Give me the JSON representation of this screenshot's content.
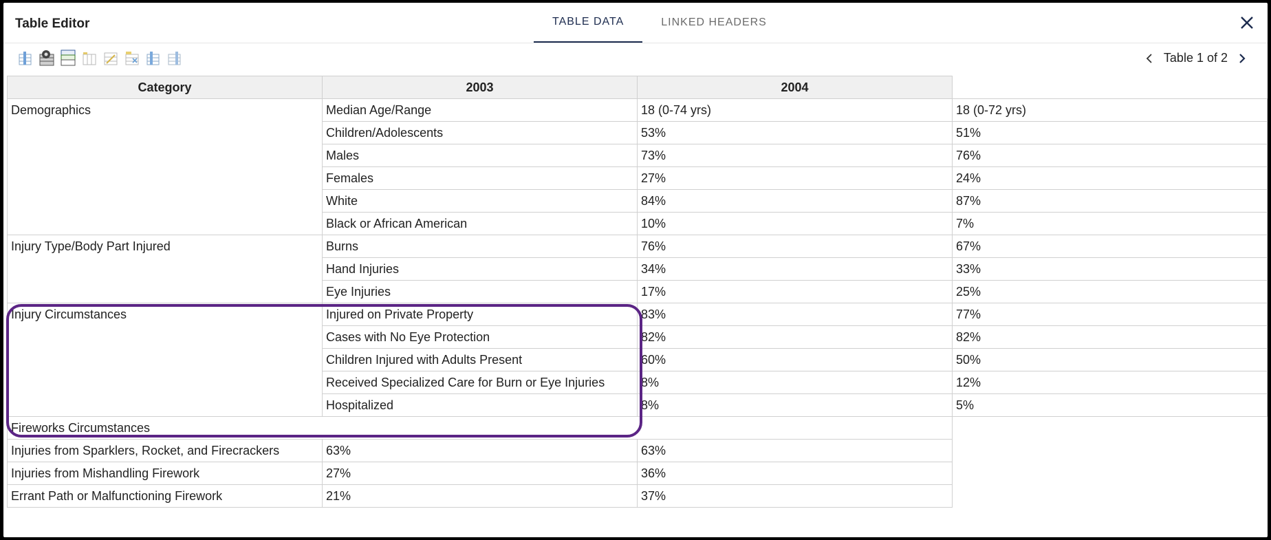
{
  "dialog": {
    "title": "Table Editor",
    "tabs": [
      {
        "label": "TABLE DATA",
        "active": true
      },
      {
        "label": "LINKED HEADERS",
        "active": false
      }
    ],
    "close_icon": "close-icon"
  },
  "toolbar": {
    "icons": [
      "insert-column-icon",
      "table-settings-icon",
      "header-cells-icon",
      "merge-cells-icon",
      "split-cells-icon",
      "delete-column-icon",
      "insert-row-icon",
      "delete-row-icon"
    ]
  },
  "pager": {
    "label": "Table 1 of 2"
  },
  "table": {
    "headers": [
      "Category",
      "2003",
      "2004"
    ],
    "rows": [
      {
        "c": [
          "Demographics",
          "Median Age/Range",
          "18 (0-74 yrs)",
          "18 (0-72 yrs)"
        ]
      },
      {
        "c": [
          "",
          "Children/Adolescents",
          "53%",
          "51%"
        ]
      },
      {
        "c": [
          "",
          "Males",
          "73%",
          "76%"
        ]
      },
      {
        "c": [
          "",
          "Females",
          "27%",
          "24%"
        ]
      },
      {
        "c": [
          "",
          "White",
          "84%",
          "87%"
        ]
      },
      {
        "c": [
          "",
          "Black or African American",
          "10%",
          "7%"
        ]
      },
      {
        "c": [
          "Injury Type/Body Part Injured",
          "Burns",
          "76%",
          "67%"
        ]
      },
      {
        "c": [
          "",
          "Hand Injuries",
          "34%",
          "33%"
        ]
      },
      {
        "c": [
          "",
          "Eye Injuries",
          "17%",
          "25%"
        ]
      },
      {
        "c": [
          "Injury Circumstances",
          "Injured on Private Property",
          "83%",
          "77%"
        ]
      },
      {
        "c": [
          "",
          "Cases with No Eye Protection",
          "82%",
          "82%"
        ]
      },
      {
        "c": [
          "",
          "Children Injured with Adults Present",
          "60%",
          "50%"
        ]
      },
      {
        "c": [
          "",
          "Received Specialized Care for Burn or Eye Injuries",
          "8%",
          "12%"
        ]
      },
      {
        "c": [
          "",
          "Hospitalized",
          "8%",
          "5%"
        ]
      }
    ],
    "section": "Fireworks Circumstances",
    "tail_rows": [
      {
        "c": [
          "Injuries from Sparklers, Rocket, and Firecrackers",
          "63%",
          "63%"
        ]
      },
      {
        "c": [
          "Injuries from Mishandling Firework",
          "27%",
          "36%"
        ]
      },
      {
        "c": [
          "Errant Path or Malfunctioning Firework",
          "21%",
          "37%"
        ]
      }
    ]
  },
  "colors": {
    "highlight": "#5b2585",
    "active_tab": "#1d2c4f"
  }
}
